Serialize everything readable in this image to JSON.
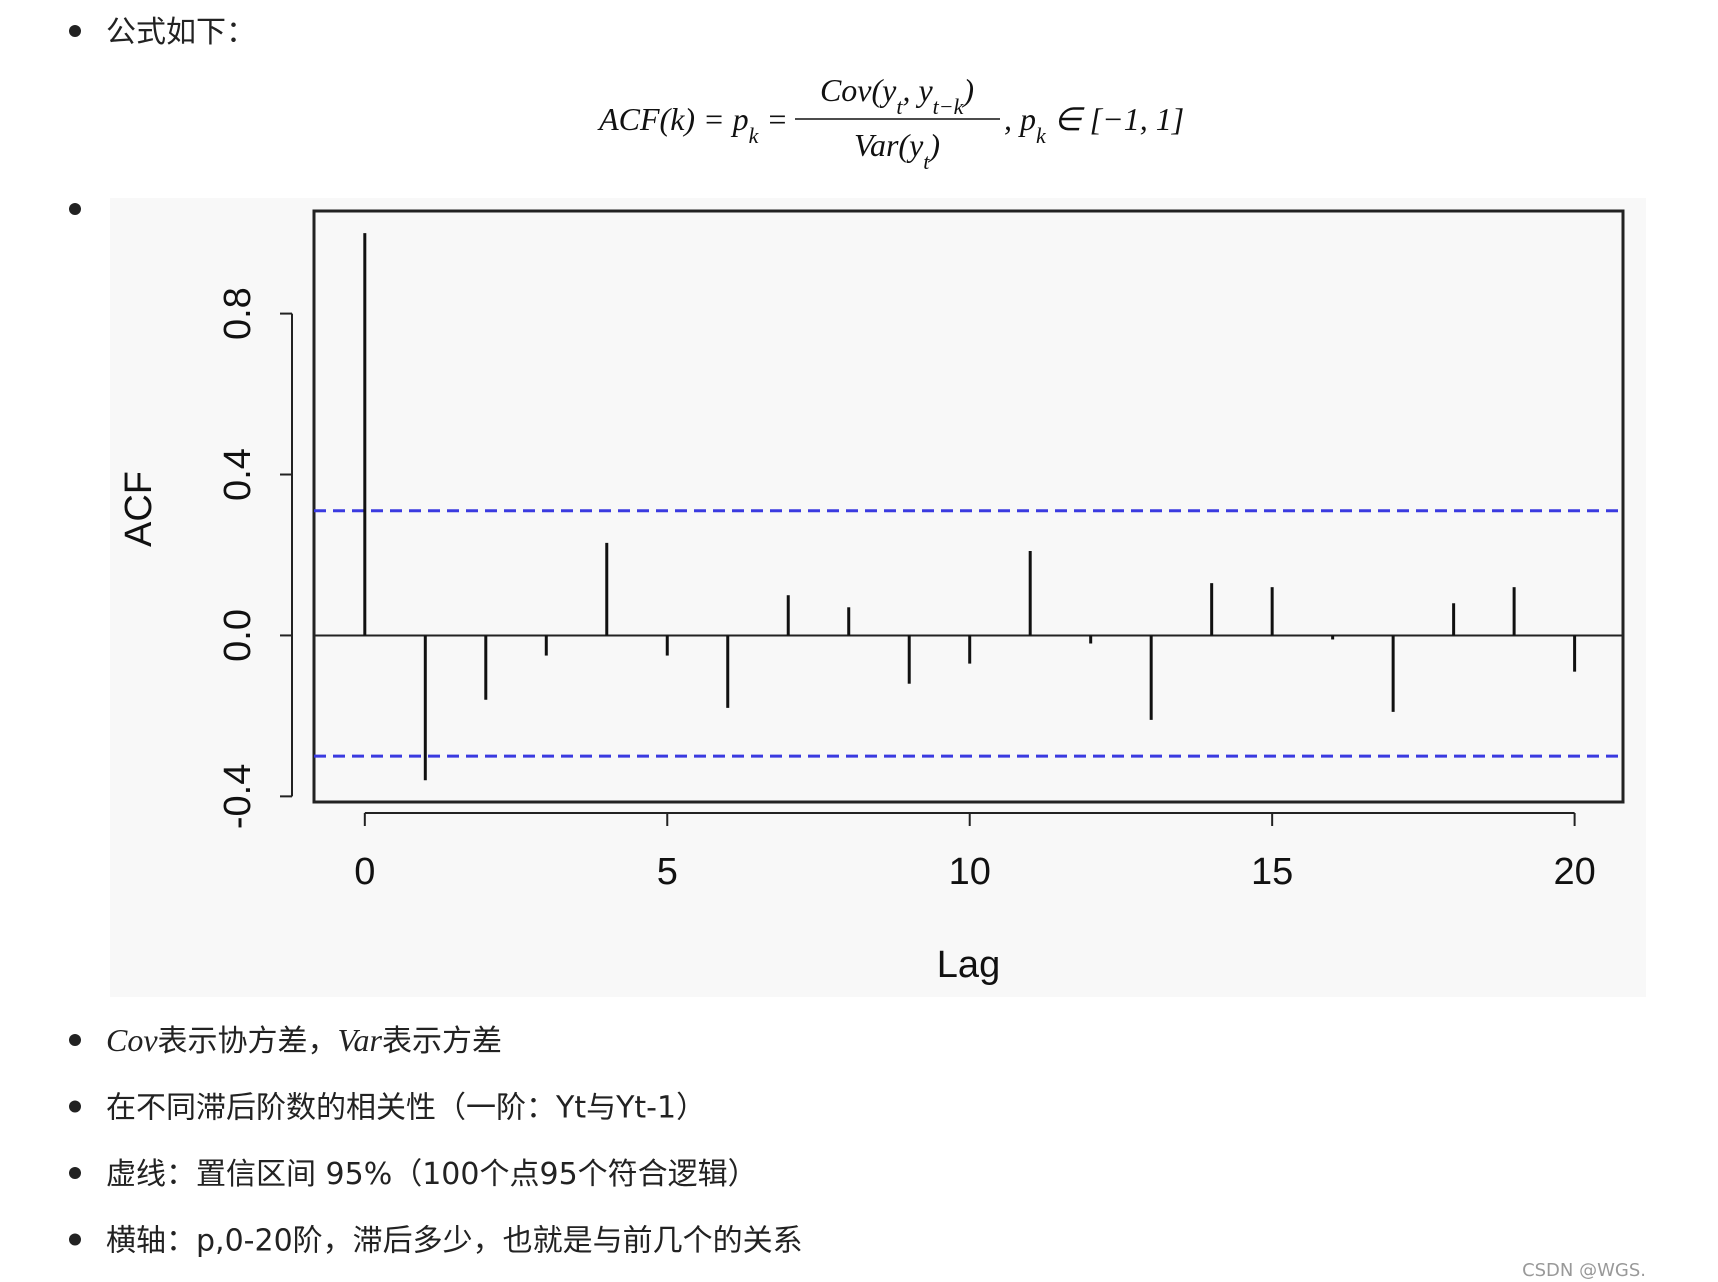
{
  "intro": "公式如下：",
  "formula": {
    "lhs": [
      "ACF(k) = p",
      "k",
      " ="
    ],
    "numerator": [
      "Cov(y",
      "t",
      ", y",
      "t−k",
      ")"
    ],
    "denominator": [
      "Var(y",
      "t",
      ")"
    ],
    "tail": [
      ", p",
      "k",
      " ∈ [−1, 1]"
    ]
  },
  "chart_data": {
    "type": "stem",
    "xlabel": "Lag",
    "ylabel": "ACF",
    "x": [
      0,
      1,
      2,
      3,
      4,
      5,
      6,
      7,
      8,
      9,
      10,
      11,
      12,
      13,
      14,
      15,
      16,
      17,
      18,
      19,
      20
    ],
    "values": [
      1.0,
      -0.36,
      -0.16,
      -0.05,
      0.23,
      -0.05,
      -0.18,
      0.1,
      0.07,
      -0.12,
      -0.07,
      0.21,
      -0.02,
      -0.21,
      0.13,
      0.12,
      -0.01,
      -0.19,
      0.08,
      0.12,
      -0.09
    ],
    "color": "#111111",
    "ci": [
      0.31,
      -0.3
    ],
    "ci_color": "#3a3ae0",
    "xlim": [
      -0.84,
      20.8
    ],
    "ylim": [
      -0.414,
      1.055
    ],
    "xticks": [
      0,
      5,
      10,
      15,
      20
    ],
    "yticks": [
      -0.4,
      {
        "value": 0,
        "label": "0.0"
      },
      0.4,
      0.8
    ]
  },
  "bullets": [
    [
      "Cov",
      "表示协方差，",
      "Var",
      "表示方差"
    ],
    [
      "在不同滞后阶数的相关性（一阶：Yt与Yt-1）"
    ],
    [
      "虚线：置信区间 95%（100个点95个符合逻辑）"
    ],
    [
      "横轴：p,0-20阶，滞后多少，也就是与前几个的关系"
    ]
  ],
  "watermark": "CSDN @WGS."
}
